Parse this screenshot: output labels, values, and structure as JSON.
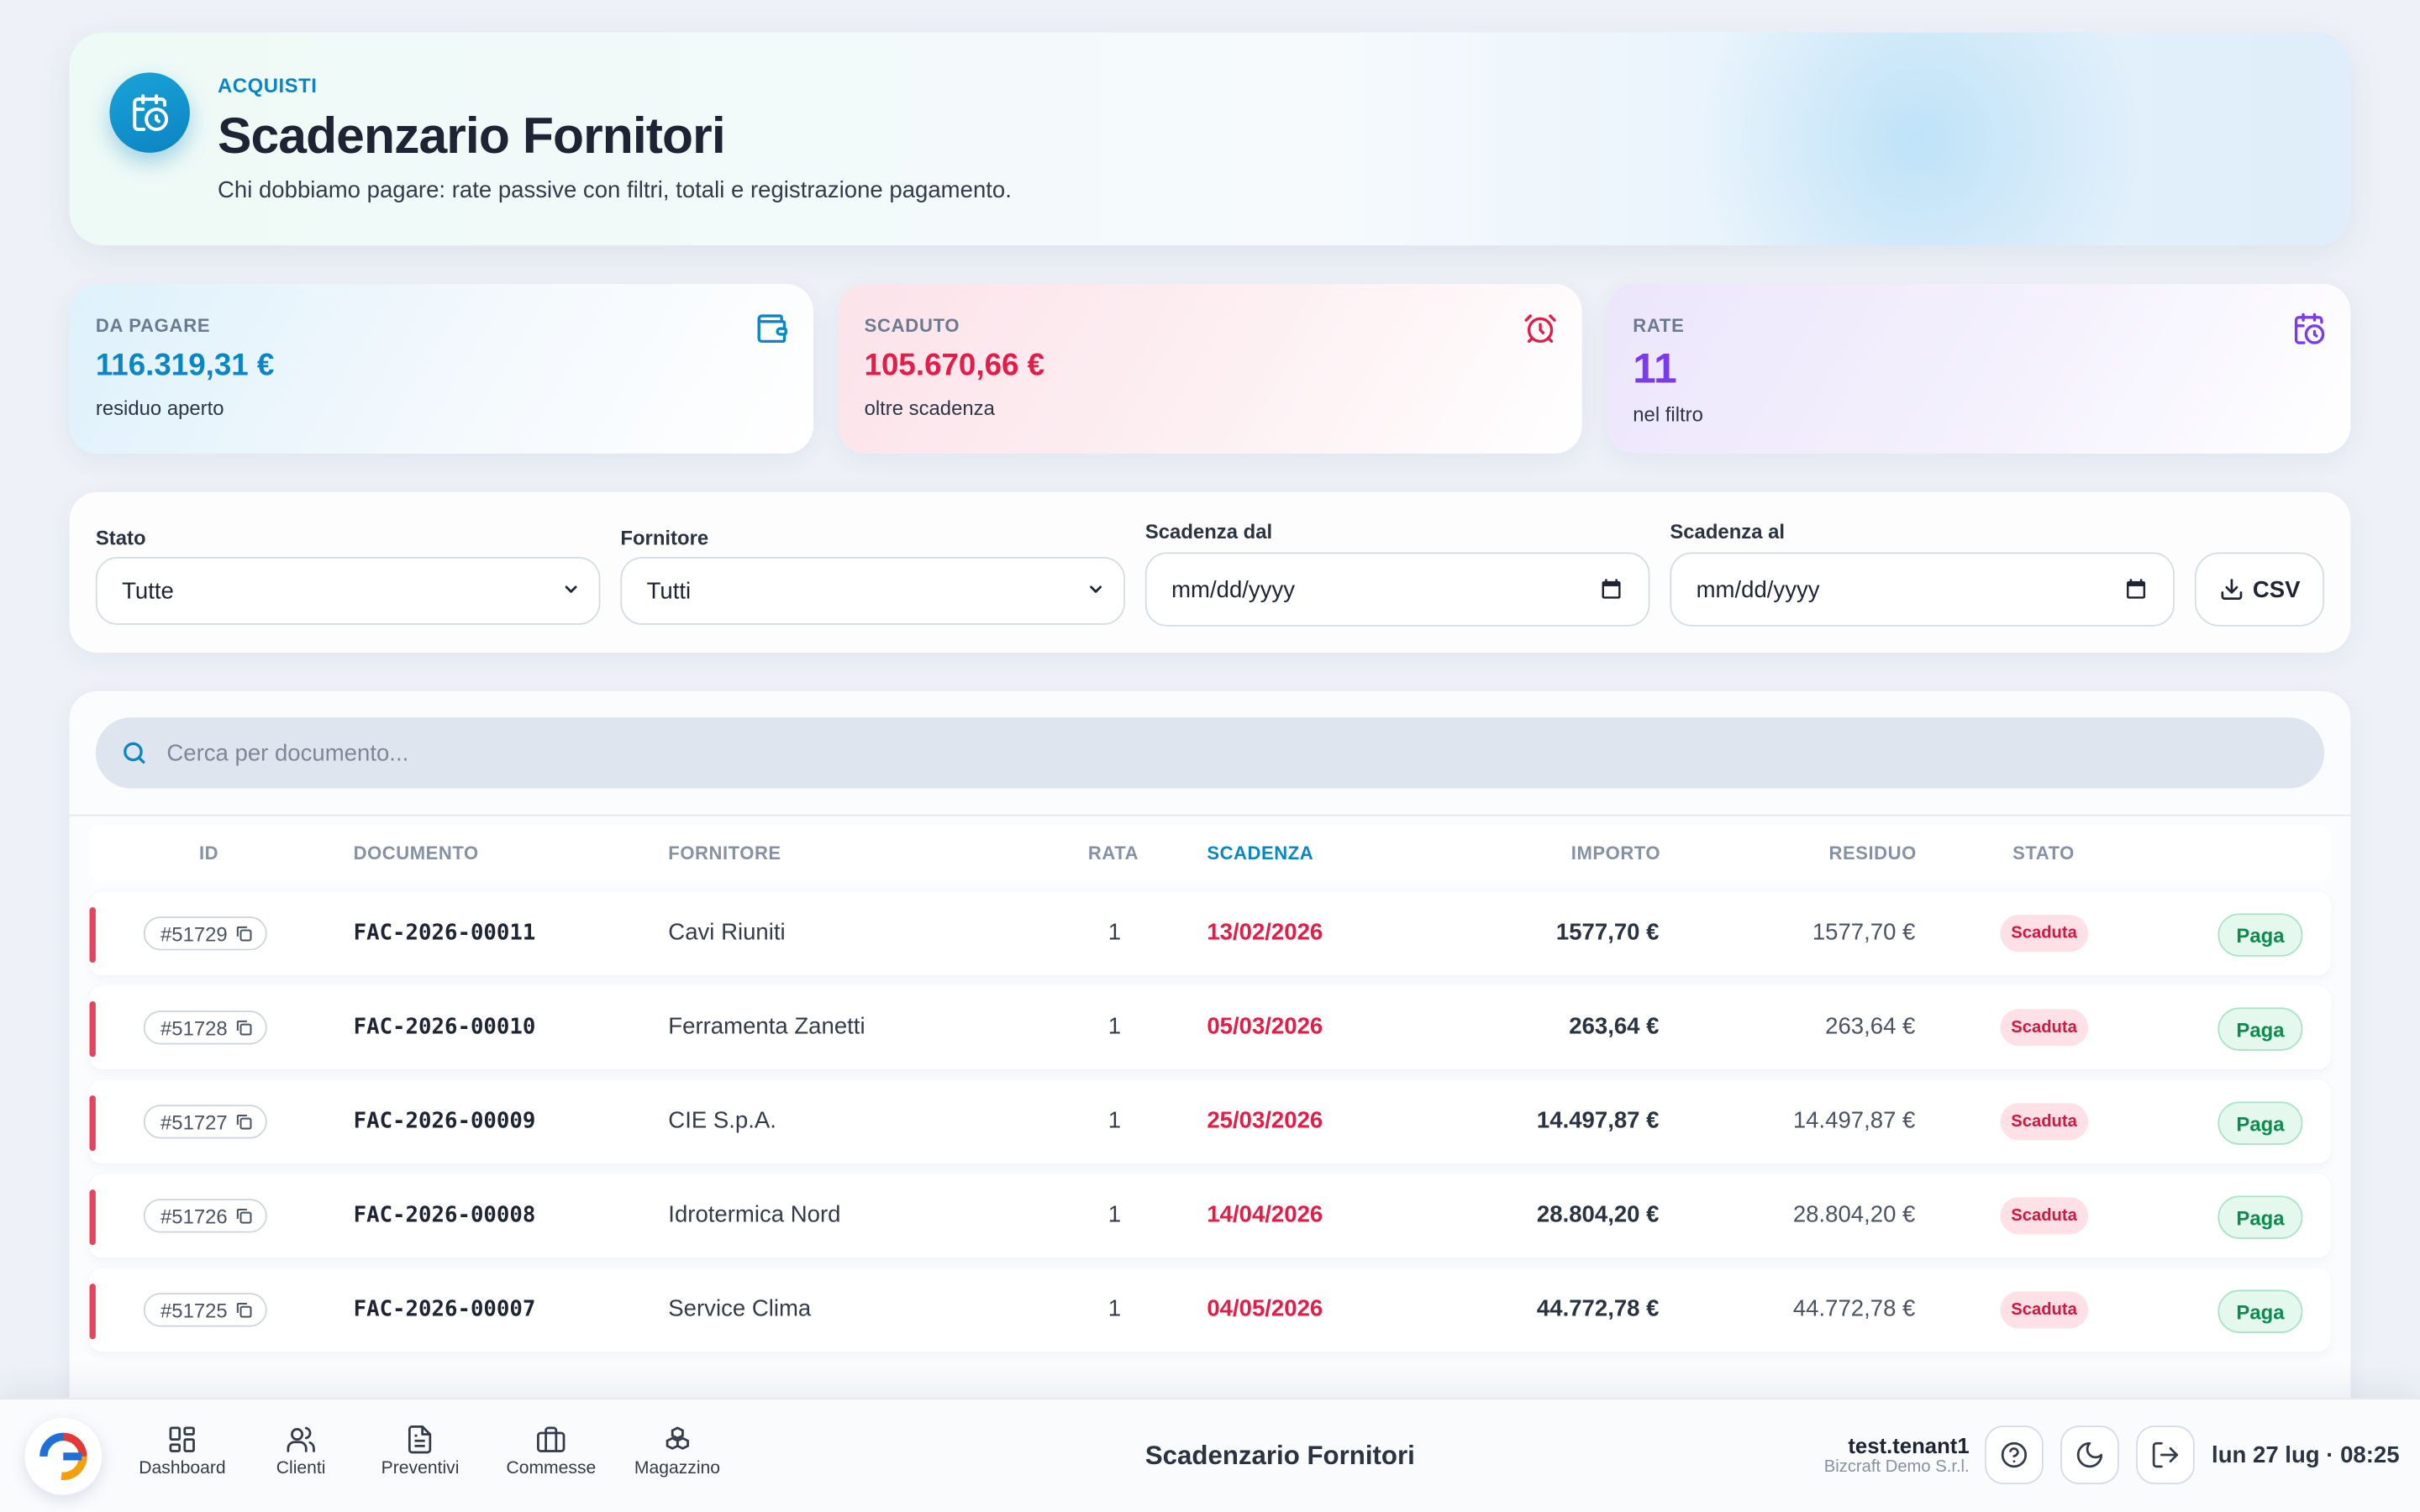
{
  "header": {
    "kicker": "ACQUISTI",
    "title": "Scadenzario Fornitori",
    "subtitle": "Chi dobbiamo pagare: rate passive con filtri, totali e registrazione pagamento.",
    "icon": "calendar-clock-icon"
  },
  "kpis": [
    {
      "label": "DA PAGARE",
      "value": "116.319,31 €",
      "note": "residuo aperto",
      "color": "#0a86c4",
      "icon": "wallet-icon"
    },
    {
      "label": "SCADUTO",
      "value": "105.670,66 €",
      "note": "oltre scadenza",
      "color": "#e11d48",
      "icon": "alarm-clock-icon"
    },
    {
      "label": "RATE",
      "value": "11",
      "note": "nel filtro",
      "color": "#7c3aed",
      "icon": "calendar-clock-icon"
    }
  ],
  "filters": {
    "stato_label": "Stato",
    "stato_value": "Tutte",
    "fornitore_label": "Fornitore",
    "fornitore_value": "Tutti",
    "dal_label": "Scadenza dal",
    "dal_value": "mm/dd/yyyy",
    "al_label": "Scadenza al",
    "al_value": "mm/dd/yyyy",
    "csv_label": "CSV"
  },
  "search": {
    "placeholder": "Cerca per documento..."
  },
  "table": {
    "columns": [
      "ID",
      "DOCUMENTO",
      "FORNITORE",
      "RATA",
      "SCADENZA",
      "IMPORTO",
      "RESIDUO",
      "STATO"
    ],
    "rows": [
      {
        "id": "#51729",
        "doc": "FAC-2026-00011",
        "fornitore": "Cavi Riuniti",
        "rata": "1",
        "scadenza": "13/02/2026",
        "importo": "1577,70 €",
        "residuo": "1577,70 €",
        "stato": "Scaduta",
        "action": "Paga"
      },
      {
        "id": "#51728",
        "doc": "FAC-2026-00010",
        "fornitore": "Ferramenta Zanetti",
        "rata": "1",
        "scadenza": "05/03/2026",
        "importo": "263,64 €",
        "residuo": "263,64 €",
        "stato": "Scaduta",
        "action": "Paga"
      },
      {
        "id": "#51727",
        "doc": "FAC-2026-00009",
        "fornitore": "CIE S.p.A.",
        "rata": "1",
        "scadenza": "25/03/2026",
        "importo": "14.497,87 €",
        "residuo": "14.497,87 €",
        "stato": "Scaduta",
        "action": "Paga"
      },
      {
        "id": "#51726",
        "doc": "FAC-2026-00008",
        "fornitore": "Idrotermica Nord",
        "rata": "1",
        "scadenza": "14/04/2026",
        "importo": "28.804,20 €",
        "residuo": "28.804,20 €",
        "stato": "Scaduta",
        "action": "Paga"
      },
      {
        "id": "#51725",
        "doc": "FAC-2026-00007",
        "fornitore": "Service Clima",
        "rata": "1",
        "scadenza": "04/05/2026",
        "importo": "44.772,78 €",
        "residuo": "44.772,78 €",
        "stato": "Scaduta",
        "action": "Paga"
      }
    ]
  },
  "bottombar": {
    "nav": [
      {
        "label": "Dashboard",
        "icon": "dashboard-grid-icon"
      },
      {
        "label": "Clienti",
        "icon": "users-icon"
      },
      {
        "label": "Preventivi",
        "icon": "document-icon"
      },
      {
        "label": "Commesse",
        "icon": "briefcase-icon"
      },
      {
        "label": "Magazzino",
        "icon": "boxes-icon"
      }
    ],
    "page_title": "Scadenzario Fornitori",
    "user_name": "test.tenant1",
    "user_org": "Bizcraft Demo S.r.l.",
    "datetime": "lun 27 lug · 08:25"
  }
}
